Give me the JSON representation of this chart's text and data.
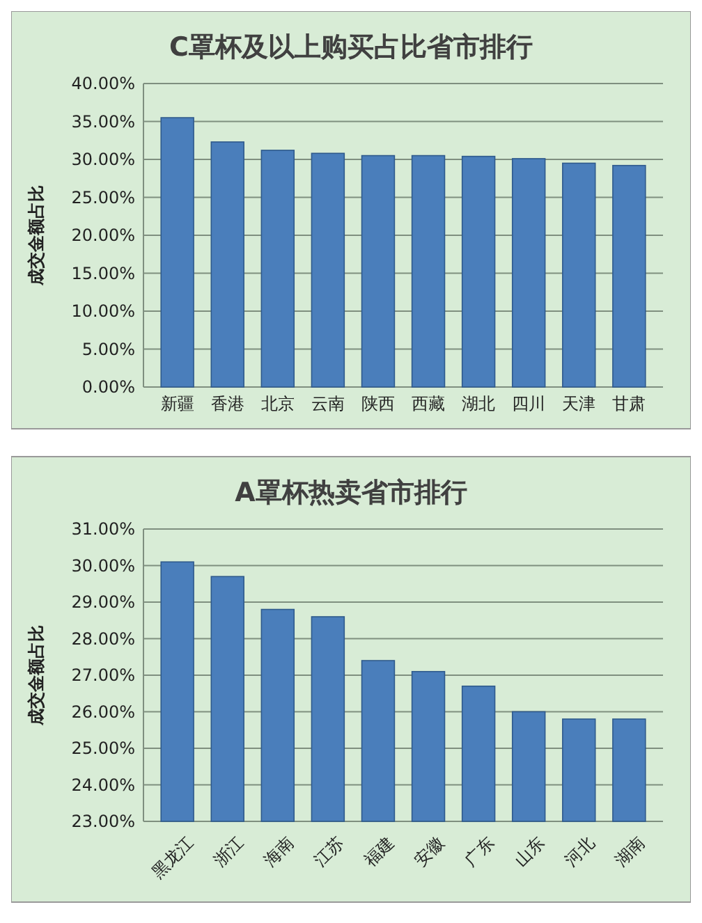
{
  "chart_data": [
    {
      "type": "bar",
      "title": "C罩杯及以上购买占比省市排行",
      "ylabel": "成交金额占比",
      "categories": [
        "新疆",
        "香港",
        "北京",
        "云南",
        "陕西",
        "西藏",
        "湖北",
        "四川",
        "天津",
        "甘肃"
      ],
      "values": [
        35.5,
        32.3,
        31.2,
        30.8,
        30.5,
        30.5,
        30.4,
        30.1,
        29.5,
        29.2
      ],
      "color": "#4a7ebb",
      "ylim": [
        0,
        40
      ],
      "yticks": [
        {
          "value": 0,
          "label": "0.00%"
        },
        {
          "value": 5,
          "label": "5.00%"
        },
        {
          "value": 10,
          "label": "10.00%"
        },
        {
          "value": 15,
          "label": "15.00%"
        },
        {
          "value": 20,
          "label": "20.00%"
        },
        {
          "value": 25,
          "label": "25.00%"
        },
        {
          "value": 30,
          "label": "30.00%"
        },
        {
          "value": 35,
          "label": "35.00%"
        },
        {
          "value": 40,
          "label": "40.00%"
        }
      ],
      "grid": "y"
    },
    {
      "type": "bar",
      "title": "A罩杯热卖省市排行",
      "ylabel": "成交金额占比",
      "categories": [
        "黑龙江",
        "浙江",
        "海南",
        "江苏",
        "福建",
        "安徽",
        "广东",
        "山东",
        "河北",
        "湖南"
      ],
      "values": [
        30.1,
        29.7,
        28.8,
        28.6,
        27.4,
        27.1,
        26.7,
        26.0,
        25.8,
        25.8
      ],
      "color": "#4a7ebb",
      "ylim": [
        23,
        31
      ],
      "yticks": [
        {
          "value": 23,
          "label": "23.00%"
        },
        {
          "value": 24,
          "label": "24.00%"
        },
        {
          "value": 25,
          "label": "25.00%"
        },
        {
          "value": 26,
          "label": "26.00%"
        },
        {
          "value": 27,
          "label": "27.00%"
        },
        {
          "value": 28,
          "label": "28.00%"
        },
        {
          "value": 29,
          "label": "29.00%"
        },
        {
          "value": 30,
          "label": "30.00%"
        },
        {
          "value": 31,
          "label": "31.00%"
        }
      ],
      "grid": "y"
    }
  ]
}
